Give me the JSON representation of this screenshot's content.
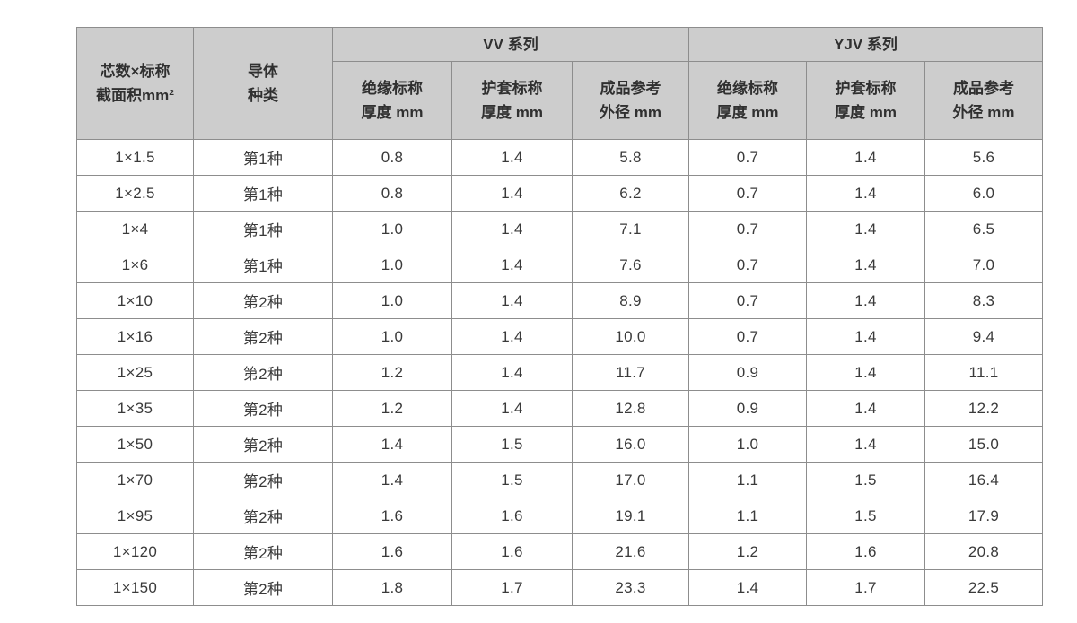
{
  "colors": {
    "header_bg": "#cdcdcd",
    "border": "#8d8d8d",
    "outer_border": "#6f6f6f",
    "text": "#3a3a3a",
    "page_bg": "#ffffff"
  },
  "table": {
    "header": {
      "spec_col": {
        "line1": "芯数×标称",
        "line2": "截面积mm²"
      },
      "conductor_col": {
        "line1": "导体",
        "line2": "种类"
      },
      "group_vv": "VV 系列",
      "group_yjv": "YJV 系列",
      "sub": {
        "insulation": {
          "line1": "绝缘标称",
          "line2": "厚度 mm"
        },
        "sheath": {
          "line1": "护套标称",
          "line2": "厚度 mm"
        },
        "od": {
          "line1": "成品参考",
          "line2": "外径 mm"
        }
      }
    },
    "rows": [
      {
        "spec": "1×1.5",
        "conductor": "第1种",
        "vv": [
          "0.8",
          "1.4",
          "5.8"
        ],
        "yjv": [
          "0.7",
          "1.4",
          "5.6"
        ]
      },
      {
        "spec": "1×2.5",
        "conductor": "第1种",
        "vv": [
          "0.8",
          "1.4",
          "6.2"
        ],
        "yjv": [
          "0.7",
          "1.4",
          "6.0"
        ]
      },
      {
        "spec": "1×4",
        "conductor": "第1种",
        "vv": [
          "1.0",
          "1.4",
          "7.1"
        ],
        "yjv": [
          "0.7",
          "1.4",
          "6.5"
        ]
      },
      {
        "spec": "1×6",
        "conductor": "第1种",
        "vv": [
          "1.0",
          "1.4",
          "7.6"
        ],
        "yjv": [
          "0.7",
          "1.4",
          "7.0"
        ]
      },
      {
        "spec": "1×10",
        "conductor": "第2种",
        "vv": [
          "1.0",
          "1.4",
          "8.9"
        ],
        "yjv": [
          "0.7",
          "1.4",
          "8.3"
        ]
      },
      {
        "spec": "1×16",
        "conductor": "第2种",
        "vv": [
          "1.0",
          "1.4",
          "10.0"
        ],
        "yjv": [
          "0.7",
          "1.4",
          "9.4"
        ]
      },
      {
        "spec": "1×25",
        "conductor": "第2种",
        "vv": [
          "1.2",
          "1.4",
          "11.7"
        ],
        "yjv": [
          "0.9",
          "1.4",
          "11.1"
        ]
      },
      {
        "spec": "1×35",
        "conductor": "第2种",
        "vv": [
          "1.2",
          "1.4",
          "12.8"
        ],
        "yjv": [
          "0.9",
          "1.4",
          "12.2"
        ]
      },
      {
        "spec": "1×50",
        "conductor": "第2种",
        "vv": [
          "1.4",
          "1.5",
          "16.0"
        ],
        "yjv": [
          "1.0",
          "1.4",
          "15.0"
        ]
      },
      {
        "spec": "1×70",
        "conductor": "第2种",
        "vv": [
          "1.4",
          "1.5",
          "17.0"
        ],
        "yjv": [
          "1.1",
          "1.5",
          "16.4"
        ]
      },
      {
        "spec": "1×95",
        "conductor": "第2种",
        "vv": [
          "1.6",
          "1.6",
          "19.1"
        ],
        "yjv": [
          "1.1",
          "1.5",
          "17.9"
        ]
      },
      {
        "spec": "1×120",
        "conductor": "第2种",
        "vv": [
          "1.6",
          "1.6",
          "21.6"
        ],
        "yjv": [
          "1.2",
          "1.6",
          "20.8"
        ]
      },
      {
        "spec": "1×150",
        "conductor": "第2种",
        "vv": [
          "1.8",
          "1.7",
          "23.3"
        ],
        "yjv": [
          "1.4",
          "1.7",
          "22.5"
        ]
      }
    ]
  }
}
